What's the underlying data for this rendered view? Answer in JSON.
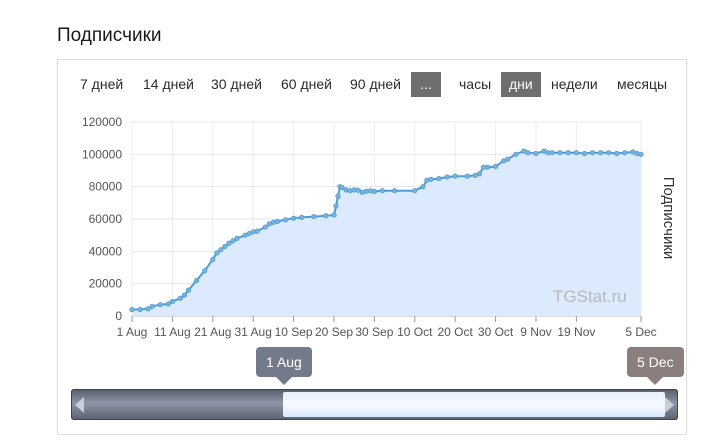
{
  "title": "Подписчики",
  "ranges": [
    {
      "label": "7 дней",
      "active": false
    },
    {
      "label": "14 дней",
      "active": false
    },
    {
      "label": "30 дней",
      "active": false
    },
    {
      "label": "60 дней",
      "active": false
    },
    {
      "label": "90 дней",
      "active": false
    },
    {
      "label": "...",
      "active": true
    },
    {
      "label": "часы",
      "active": false
    },
    {
      "label": "дни",
      "active": true
    },
    {
      "label": "недели",
      "active": false
    },
    {
      "label": "месяцы",
      "active": false
    }
  ],
  "watermark": "TGStat.ru",
  "navigator": {
    "from_label": "1 Aug",
    "to_label": "5 Dec",
    "window_start_fraction": 0.35,
    "window_end_fraction": 0.98
  },
  "colors": {
    "line": "#4f9bd1",
    "area": "#dbeafd",
    "marker": "#77b4e0",
    "active_button": "#6e6e6e"
  },
  "chart_data": {
    "type": "area",
    "title": "",
    "xlabel": "",
    "ylabel": "Подписчики",
    "ylim": [
      0,
      120000
    ],
    "yticks": [
      "0",
      "20000",
      "40000",
      "60000",
      "80000",
      "100000",
      "120000"
    ],
    "xtick_labels": [
      "1 Aug",
      "11 Aug",
      "21 Aug",
      "31 Aug",
      "10 Sep",
      "20 Sep",
      "30 Sep",
      "10 Oct",
      "20 Oct",
      "30 Oct",
      "9 Nov",
      "19 Nov",
      "5 Dec"
    ],
    "xtick_days": [
      0,
      10,
      20,
      30,
      40,
      50,
      60,
      70,
      80,
      90,
      100,
      110,
      126
    ],
    "x_range_days": [
      0,
      126
    ],
    "grid": true,
    "series": [
      {
        "name": "",
        "x_days": [
          0,
          2,
          4,
          5,
          7,
          9,
          10,
          12,
          13,
          14,
          16,
          18,
          20,
          21,
          22,
          23,
          24,
          25,
          26,
          28,
          29,
          30,
          31,
          33,
          34,
          35,
          36,
          38,
          40,
          42,
          45,
          48,
          50,
          50.5,
          51,
          51.5,
          52,
          53,
          54,
          55,
          56,
          57,
          58,
          59,
          60,
          62,
          65,
          70,
          72,
          73,
          74,
          76,
          78,
          80,
          83,
          85,
          86,
          87,
          88,
          90,
          92,
          93,
          95,
          97,
          98,
          100,
          102,
          103,
          104,
          106,
          108,
          110,
          112,
          114,
          116,
          118,
          120,
          122,
          124,
          125,
          126
        ],
        "values": [
          4000,
          4000,
          4500,
          6000,
          7000,
          7500,
          9000,
          11000,
          13000,
          16000,
          22000,
          28000,
          35000,
          39000,
          41000,
          43000,
          45000,
          46500,
          48000,
          50000,
          51000,
          52000,
          52500,
          55000,
          57000,
          58000,
          58500,
          59500,
          60500,
          61000,
          61500,
          62000,
          62500,
          68000,
          74000,
          80000,
          79500,
          78000,
          77500,
          78000,
          77800,
          76500,
          77200,
          77500,
          77000,
          77500,
          77500,
          77500,
          80000,
          84000,
          84500,
          85000,
          86000,
          86500,
          86500,
          87000,
          88000,
          92000,
          92000,
          92500,
          96000,
          97000,
          100000,
          102000,
          101000,
          100500,
          102000,
          101000,
          101000,
          101000,
          101000,
          101000,
          100500,
          101000,
          101000,
          101000,
          100500,
          101000,
          101500,
          100500,
          100000
        ]
      }
    ]
  }
}
